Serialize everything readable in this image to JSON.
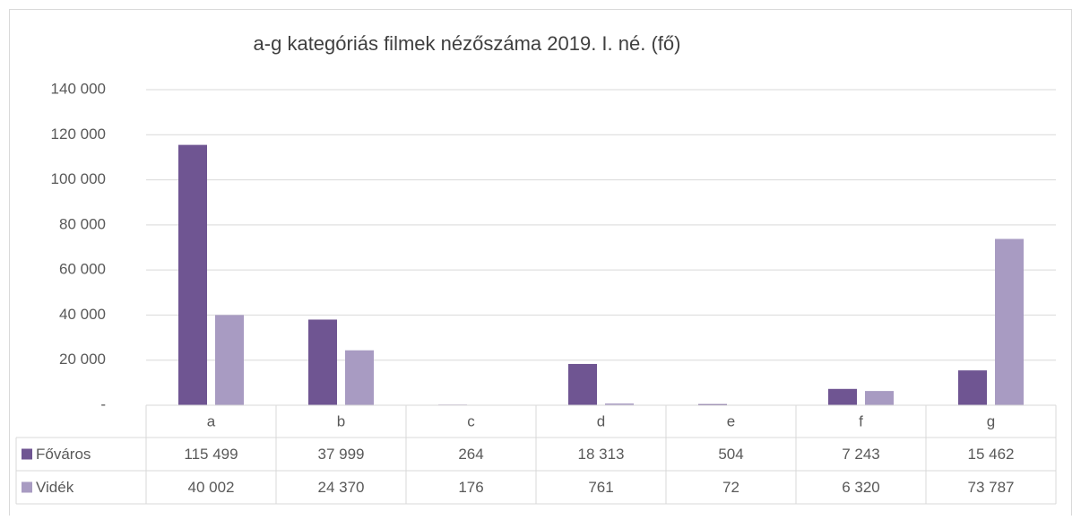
{
  "chart_data": {
    "type": "bar",
    "title": "a-g kategóriás filmek nézőszáma 2019. I. né. (fő)",
    "categories": [
      "a",
      "b",
      "c",
      "d",
      "e",
      "f",
      "g"
    ],
    "series": [
      {
        "name": "Főváros",
        "color": "#6f5592",
        "values": [
          115499,
          37999,
          264,
          18313,
          504,
          7243,
          15462
        ],
        "value_labels": [
          "115 499",
          "37 999",
          "264",
          "18 313",
          "504",
          "7 243",
          "15 462"
        ]
      },
      {
        "name": "Vidék",
        "color": "#a89bc2",
        "values": [
          40002,
          24370,
          176,
          761,
          72,
          6320,
          73787
        ],
        "value_labels": [
          "40 002",
          "24 370",
          "176",
          "761",
          "72",
          "6 320",
          "73 787"
        ]
      }
    ],
    "ylim": [
      0,
      140000
    ],
    "yticks": [
      {
        "value": 0,
        "label": "-"
      },
      {
        "value": 20000,
        "label": "20 000"
      },
      {
        "value": 40000,
        "label": "40 000"
      },
      {
        "value": 60000,
        "label": "60 000"
      },
      {
        "value": 80000,
        "label": "80 000"
      },
      {
        "value": 100000,
        "label": "100 000"
      },
      {
        "value": 120000,
        "label": "120 000"
      },
      {
        "value": 140000,
        "label": "140 000"
      }
    ],
    "grid": true
  }
}
